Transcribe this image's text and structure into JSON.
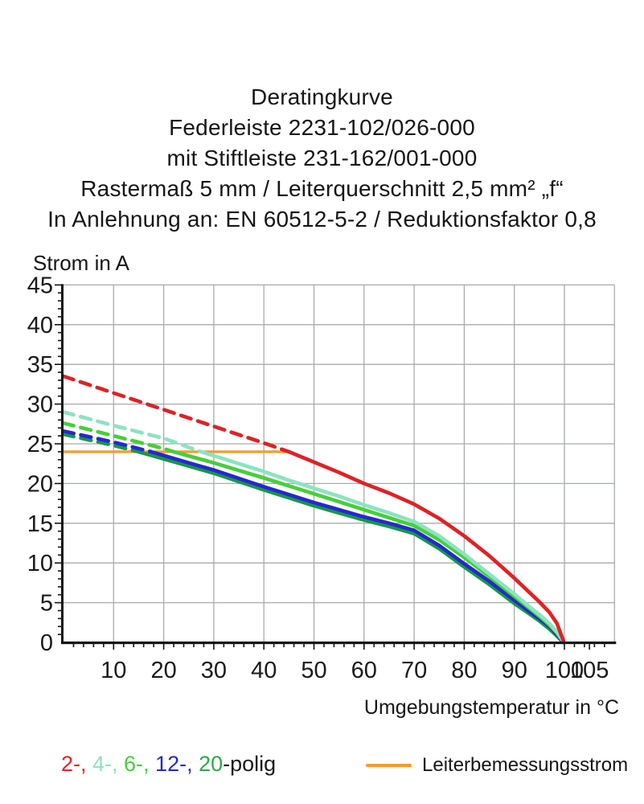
{
  "header": {
    "lines": [
      "Deratingkurve",
      "Federleiste 2231-102/026-000",
      "mit Stiftleiste 231-162/001-000",
      "Rastermaß 5 mm / Leiterquerschnitt 2,5 mm² „f“",
      "In Anlehnung an: EN 60512-5-2 / Reduktionsfaktor 0,8"
    ]
  },
  "legend": {
    "poles": [
      {
        "text": "2-, ",
        "color": "#D9262A"
      },
      {
        "text": "4-, ",
        "color": "#8CE3C1"
      },
      {
        "text": "6-, ",
        "color": "#48CE39"
      },
      {
        "text": "12-, ",
        "color": "#2429CE"
      },
      {
        "text": "20",
        "color": "#2FA94C"
      }
    ],
    "suffix": "-polig",
    "rated_label": "Leiterbemessungsstrom",
    "rated_color": "#F49C2E"
  },
  "chart_data": {
    "type": "line",
    "title": "Deratingkurve",
    "xlabel": "Umgebungstemperatur in °C",
    "ylabel": "Strom in A",
    "xlim": [
      0,
      110
    ],
    "ylim": [
      0,
      45
    ],
    "x_ticks": [
      10,
      20,
      30,
      40,
      50,
      60,
      70,
      80,
      90,
      100,
      105
    ],
    "y_ticks": [
      0,
      5,
      10,
      15,
      20,
      25,
      30,
      35,
      40,
      45
    ],
    "x_minor_step": 2,
    "y_minor_step": 1,
    "grid": true,
    "legend_position": "bottom",
    "colors": {
      "grid": "#A8ACAA",
      "axis": "#141414",
      "text": "#1A1A1A"
    },
    "rated_line": {
      "label": "Leiterbemessungsstrom",
      "value": 24,
      "x_start": 0,
      "x_end": 44.5,
      "color": "#F49C2E"
    },
    "series": [
      {
        "name": "2-polig",
        "color": "#DC2326",
        "dashed_above_rated_current": true,
        "dash_until": 45,
        "points": [
          [
            0,
            33.5
          ],
          [
            10,
            31.4
          ],
          [
            20,
            29.3
          ],
          [
            30,
            27.2
          ],
          [
            40,
            25.1
          ],
          [
            45,
            24
          ],
          [
            50,
            22.7
          ],
          [
            55,
            21.4
          ],
          [
            60,
            20
          ],
          [
            65,
            18.8
          ],
          [
            70,
            17.4
          ],
          [
            75,
            15.6
          ],
          [
            80,
            13.4
          ],
          [
            85,
            10.9
          ],
          [
            90,
            8.1
          ],
          [
            93,
            6.3
          ],
          [
            95,
            5.1
          ],
          [
            97,
            3.8
          ],
          [
            98.5,
            2.4
          ],
          [
            99.8,
            0.2
          ]
        ]
      },
      {
        "name": "4-polig",
        "color": "#8CE3C1",
        "dashed_above_rated_current": true,
        "dash_until": 27.5,
        "points": [
          [
            0,
            29
          ],
          [
            10,
            27.3
          ],
          [
            20,
            25.7
          ],
          [
            27.5,
            24
          ],
          [
            35,
            22.5
          ],
          [
            40,
            21.5
          ],
          [
            45,
            20.4
          ],
          [
            50,
            19.4
          ],
          [
            55,
            18.4
          ],
          [
            60,
            17.3
          ],
          [
            65,
            16.3
          ],
          [
            70,
            15.2
          ],
          [
            75,
            13.4
          ],
          [
            80,
            11.1
          ],
          [
            85,
            8.6
          ],
          [
            90,
            6.1
          ],
          [
            93,
            4.5
          ],
          [
            95,
            3.5
          ],
          [
            97,
            2.4
          ],
          [
            98.5,
            1.3
          ],
          [
            99.8,
            0.1
          ]
        ]
      },
      {
        "name": "6-polig",
        "color": "#48CE39",
        "dashed_above_rated_current": true,
        "dash_until": 22,
        "points": [
          [
            0,
            27.6
          ],
          [
            10,
            26
          ],
          [
            20,
            24.4
          ],
          [
            22,
            24
          ],
          [
            30,
            22.6
          ],
          [
            40,
            20.7
          ],
          [
            45,
            19.7
          ],
          [
            50,
            18.7
          ],
          [
            55,
            17.7
          ],
          [
            60,
            16.7
          ],
          [
            65,
            15.7
          ],
          [
            70,
            14.7
          ],
          [
            75,
            12.9
          ],
          [
            80,
            10.7
          ],
          [
            85,
            8.3
          ],
          [
            90,
            5.8
          ],
          [
            93,
            4.3
          ],
          [
            95,
            3.3
          ],
          [
            97,
            2.2
          ],
          [
            98.5,
            1.2
          ],
          [
            99.8,
            0.1
          ]
        ]
      },
      {
        "name": "12-polig",
        "color": "#2429CE",
        "dashed_above_rated_current": true,
        "dash_until": 17.5,
        "points": [
          [
            0,
            26.6
          ],
          [
            10,
            25.2
          ],
          [
            17.5,
            24
          ],
          [
            25,
            22.6
          ],
          [
            30,
            21.7
          ],
          [
            40,
            19.6
          ],
          [
            45,
            18.6
          ],
          [
            50,
            17.6
          ],
          [
            55,
            16.7
          ],
          [
            60,
            15.8
          ],
          [
            65,
            15
          ],
          [
            70,
            14.1
          ],
          [
            75,
            12.2
          ],
          [
            80,
            9.9
          ],
          [
            85,
            7.7
          ],
          [
            90,
            5.3
          ],
          [
            93,
            3.9
          ],
          [
            95,
            3
          ],
          [
            97,
            2
          ],
          [
            98.5,
            1
          ],
          [
            99.8,
            0
          ]
        ]
      },
      {
        "name": "20-polig",
        "color": "#18964A",
        "dashed_above_rated_current": true,
        "dash_until": 15,
        "points": [
          [
            0,
            26.2
          ],
          [
            10,
            24.8
          ],
          [
            15,
            24
          ],
          [
            25,
            22.2
          ],
          [
            30,
            21.3
          ],
          [
            40,
            19.2
          ],
          [
            45,
            18.2
          ],
          [
            50,
            17.2
          ],
          [
            55,
            16.3
          ],
          [
            60,
            15.4
          ],
          [
            65,
            14.6
          ],
          [
            70,
            13.7
          ],
          [
            75,
            11.8
          ],
          [
            80,
            9.5
          ],
          [
            85,
            7.3
          ],
          [
            90,
            4.9
          ],
          [
            93,
            3.6
          ],
          [
            95,
            2.7
          ],
          [
            97,
            1.7
          ],
          [
            98.5,
            0.8
          ],
          [
            99.8,
            0
          ]
        ]
      }
    ]
  }
}
